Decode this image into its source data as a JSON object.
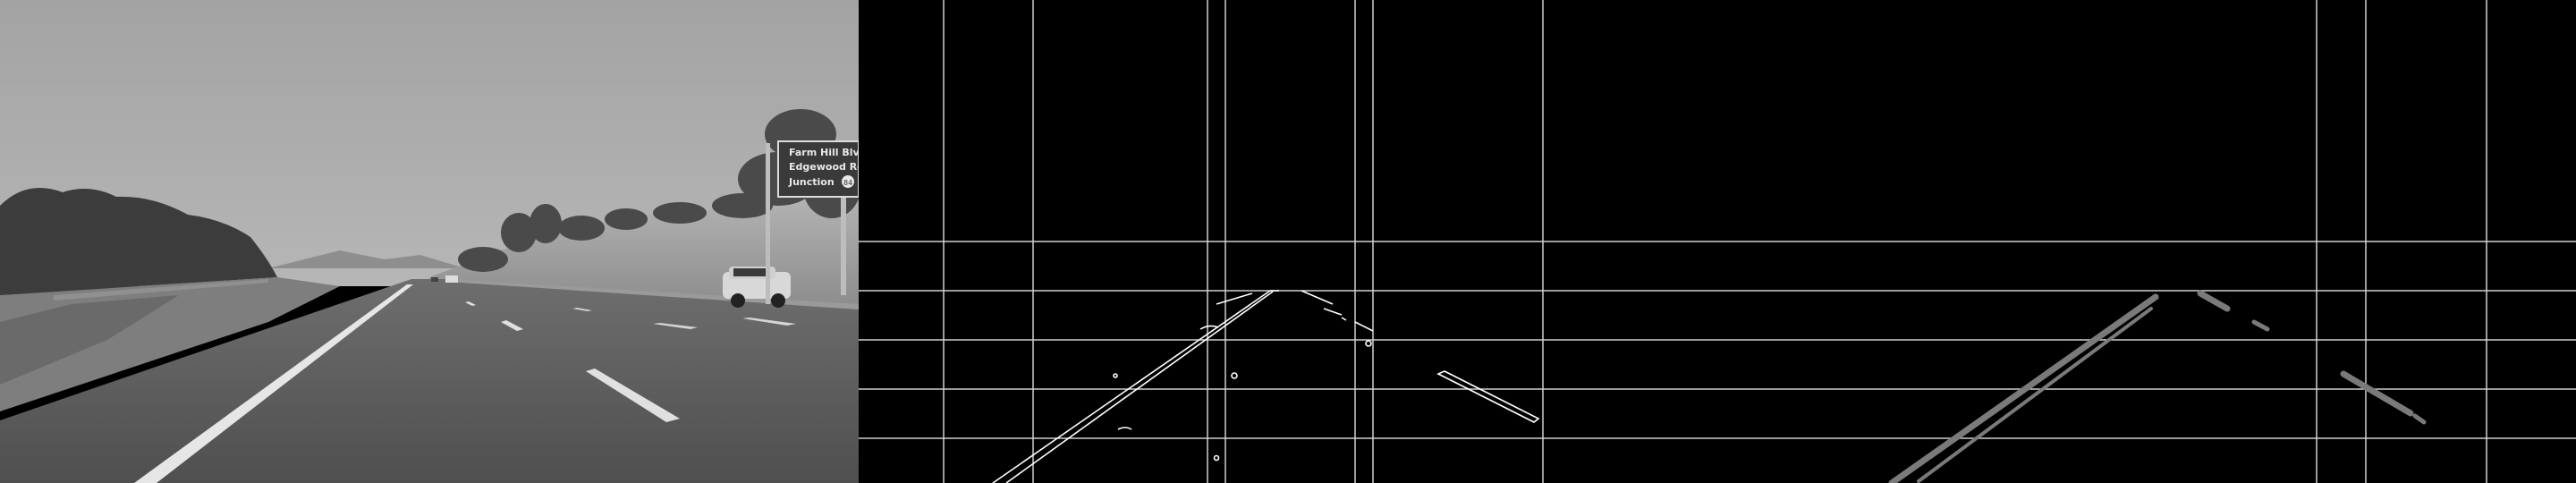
{
  "panels": [
    {
      "name": "grayscale-road"
    },
    {
      "name": "canny-edges"
    },
    {
      "name": "hough-lines"
    }
  ],
  "road_sign": {
    "line1": "Farm Hill Blvd",
    "line2": "Edgewood Rd",
    "line3": "Junction",
    "shield": "84"
  },
  "colors": {
    "sky": "#a9a9a9",
    "road": "#5a5a5a",
    "grid": "#d8d8d8",
    "edge": "#ffffff",
    "hough": "#7a7a7a"
  }
}
